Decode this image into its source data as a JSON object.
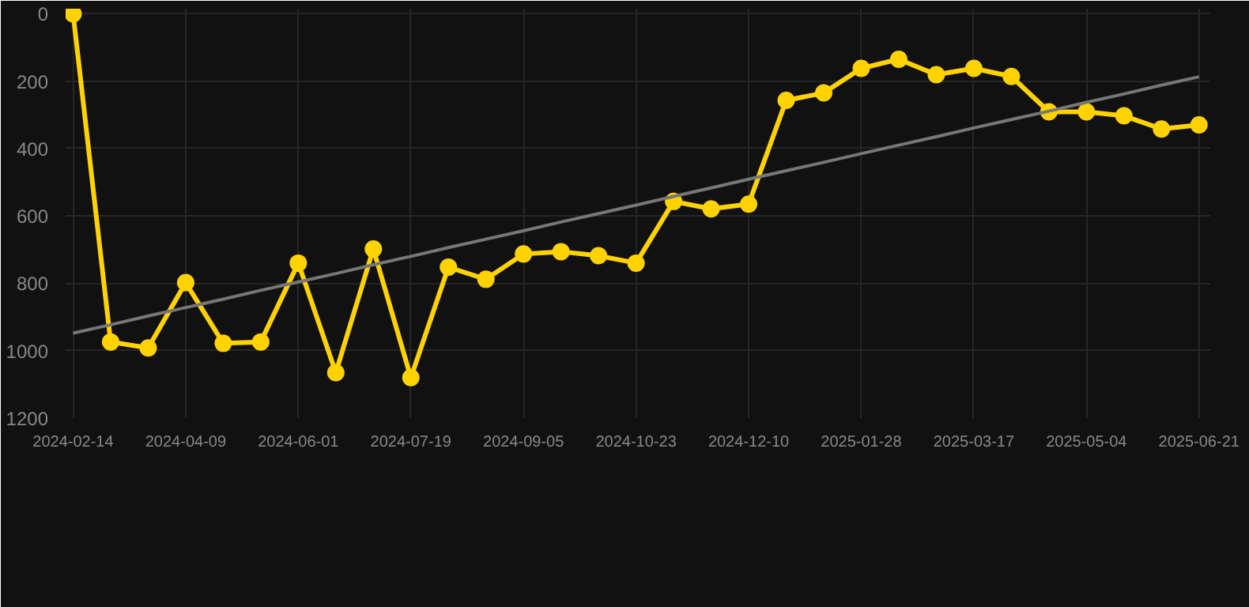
{
  "chart_data": {
    "type": "line",
    "categories": [
      "2024-02-14",
      null,
      null,
      "2024-04-09",
      null,
      null,
      "2024-06-01",
      null,
      null,
      "2024-07-19",
      null,
      null,
      "2024-09-05",
      null,
      null,
      "2024-10-23",
      null,
      null,
      "2024-12-10",
      null,
      null,
      "2025-01-28",
      null,
      null,
      "2025-03-17",
      null,
      null,
      "2025-05-04",
      null,
      null,
      "2025-06-21"
    ],
    "series": [
      {
        "color": "#ffd200",
        "marker": "circle",
        "values": [
          0,
          974,
          992,
          798,
          978,
          974,
          740,
          1065,
          698,
          1080,
          752,
          788,
          713,
          706,
          718,
          740,
          557,
          579,
          565,
          257,
          235,
          162,
          135,
          181,
          162,
          186,
          291,
          291,
          303,
          342,
          330
        ]
      },
      {
        "color": "#777777",
        "marker": "none",
        "values": [
          948,
          923,
          897,
          872,
          847,
          821,
          796,
          771,
          745,
          720,
          694,
          669,
          644,
          618,
          593,
          568,
          542,
          517,
          491,
          466,
          441,
          415,
          390,
          365,
          339,
          314,
          289,
          263,
          238,
          212,
          187
        ]
      }
    ],
    "ylim": [
      1200,
      -15
    ],
    "yticks": [
      0,
      200,
      400,
      600,
      800,
      1000,
      1200
    ],
    "grid": true
  }
}
